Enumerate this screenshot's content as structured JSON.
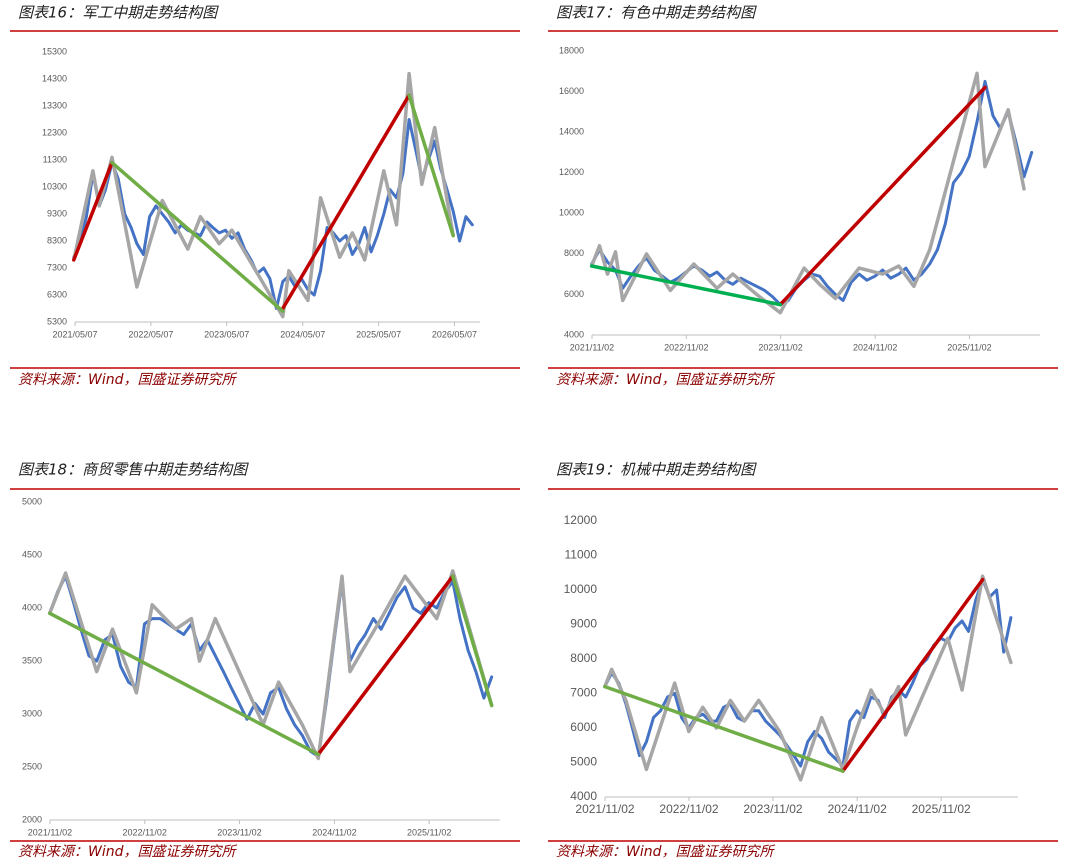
{
  "chart_data": [
    {
      "type": "line",
      "title": "图表16：军工中期走势结构图",
      "source": "资料来源：Wind，国盛证券研究所",
      "xlim": [
        "2021/05/07",
        "2026/09/07"
      ],
      "xticks": [
        "2021/05/07",
        "2022/05/07",
        "2023/05/07",
        "2024/05/07",
        "2025/05/07",
        "2026/05/07"
      ],
      "ylim": [
        5300,
        15300
      ],
      "yticks": [
        5300,
        6300,
        7300,
        8300,
        9300,
        10300,
        11300,
        12300,
        13300,
        14300,
        15300
      ],
      "series": [
        {
          "color": "#4472c4",
          "x": [
            "2021/05",
            "2021/06",
            "2021/07",
            "2021/08",
            "2021/09",
            "2021/10",
            "2021/11",
            "2021/12",
            "2022/01",
            "2022/02",
            "2022/03",
            "2022/04",
            "2022/05",
            "2022/06",
            "2022/07",
            "2022/08",
            "2022/09",
            "2022/10",
            "2022/11",
            "2022/12",
            "2023/01",
            "2023/02",
            "2023/03",
            "2023/04",
            "2023/05",
            "2023/06",
            "2023/07",
            "2023/08",
            "2023/09",
            "2023/10",
            "2023/11",
            "2023/12",
            "2024/01",
            "2024/02",
            "2024/03",
            "2024/04",
            "2024/05",
            "2024/06",
            "2024/07",
            "2024/08",
            "2024/09",
            "2024/10",
            "2024/11",
            "2024/12",
            "2025/01",
            "2025/02",
            "2025/03",
            "2025/04",
            "2025/05",
            "2025/06",
            "2025/07",
            "2025/08",
            "2025/09",
            "2025/10",
            "2025/11",
            "2025/12",
            "2026/01",
            "2026/02",
            "2026/03",
            "2026/04",
            "2026/05",
            "2026/06",
            "2026/07",
            "2026/08"
          ],
          "values": [
            7700,
            8300,
            9200,
            10800,
            9600,
            10200,
            11200,
            10600,
            9300,
            8800,
            8200,
            7800,
            9200,
            9600,
            9300,
            9000,
            8600,
            8900,
            8700,
            8600,
            8500,
            9000,
            8800,
            8600,
            8700,
            8400,
            8600,
            8000,
            7600,
            7100,
            7300,
            6900,
            5800,
            6800,
            7000,
            6600,
            6900,
            6500,
            6300,
            7200,
            8800,
            8600,
            8300,
            8500,
            7800,
            8200,
            8800,
            7900,
            8500,
            9300,
            10200,
            9900,
            10800,
            12800,
            11700,
            10600,
            11300,
            12000,
            11000,
            10200,
            9400,
            8300,
            9200,
            8900
          ]
        },
        {
          "color": "#a6a6a6",
          "x": [
            "2021/05",
            "2021/08",
            "2021/09",
            "2021/11",
            "2022/03",
            "2022/07",
            "2022/11",
            "2023/01",
            "2023/04",
            "2023/06",
            "2024/02",
            "2024/03",
            "2024/06",
            "2024/08",
            "2024/11",
            "2025/01",
            "2025/03",
            "2025/06",
            "2025/08",
            "2025/10",
            "2025/12",
            "2026/02",
            "2026/05"
          ],
          "values": [
            7600,
            10900,
            9600,
            11400,
            6600,
            9800,
            8000,
            9200,
            8200,
            8700,
            5500,
            7200,
            6100,
            9900,
            7700,
            8600,
            7600,
            10900,
            8900,
            14500,
            10400,
            12500,
            8500
          ]
        },
        {
          "color": "#c00000",
          "x": [
            "2021/05",
            "2021/11",
            "2021/11",
            "2024/02",
            "2025/10"
          ],
          "values": [
            7600,
            11200,
            null,
            5800,
            13700
          ]
        },
        {
          "color": "#70ad47",
          "x": [
            "2021/11",
            "2024/02",
            "2024/02",
            "2025/10",
            "2026/05"
          ],
          "values": [
            11200,
            5700,
            null,
            13700,
            8500
          ]
        }
      ]
    },
    {
      "type": "line",
      "title": "图表17：有色中期走势结构图",
      "source": "资料来源：Wind，国盛证券研究所",
      "xlim": [
        "2021/11/02",
        "2026/08/02"
      ],
      "xticks": [
        "2021/11/02",
        "2022/11/02",
        "2023/11/02",
        "2024/11/02",
        "2025/11/02"
      ],
      "ylim": [
        4000,
        18000
      ],
      "yticks": [
        4000,
        6000,
        8000,
        10000,
        12000,
        14000,
        16000,
        18000
      ],
      "series": [
        {
          "color": "#4472c4",
          "x": [
            "2021/11",
            "2021/12",
            "2022/01",
            "2022/02",
            "2022/03",
            "2022/04",
            "2022/05",
            "2022/06",
            "2022/07",
            "2022/08",
            "2022/09",
            "2022/10",
            "2022/11",
            "2022/12",
            "2023/01",
            "2023/02",
            "2023/03",
            "2023/04",
            "2023/05",
            "2023/06",
            "2023/07",
            "2023/08",
            "2023/09",
            "2023/10",
            "2023/11",
            "2023/12",
            "2024/01",
            "2024/02",
            "2024/03",
            "2024/04",
            "2024/05",
            "2024/06",
            "2024/07",
            "2024/08",
            "2024/09",
            "2024/10",
            "2024/11",
            "2024/12",
            "2025/01",
            "2025/02",
            "2025/03",
            "2025/04",
            "2025/05",
            "2025/06",
            "2025/07",
            "2025/08",
            "2025/09",
            "2025/10",
            "2025/11",
            "2025/12",
            "2026/01",
            "2026/02",
            "2026/03",
            "2026/04",
            "2026/05",
            "2026/06",
            "2026/07"
          ],
          "values": [
            7500,
            8200,
            7600,
            7200,
            6300,
            6900,
            7400,
            7800,
            7200,
            6900,
            6600,
            6800,
            7100,
            7400,
            7200,
            6900,
            7100,
            6700,
            6500,
            6800,
            6600,
            6400,
            6200,
            5900,
            5500,
            5700,
            6300,
            6700,
            7000,
            6900,
            6400,
            6000,
            5700,
            6600,
            7000,
            6700,
            6900,
            7200,
            6800,
            7000,
            7300,
            6700,
            7000,
            7500,
            8200,
            9500,
            11500,
            12000,
            12800,
            14500,
            16500,
            14800,
            14200,
            15000,
            13500,
            11800,
            13000
          ]
        },
        {
          "color": "#a6a6a6",
          "x": [
            "2021/11",
            "2021/12",
            "2022/01",
            "2022/02",
            "2022/03",
            "2022/06",
            "2022/09",
            "2022/12",
            "2023/03",
            "2023/05",
            "2023/08",
            "2023/11",
            "2024/02",
            "2024/04",
            "2024/06",
            "2024/09",
            "2024/12",
            "2025/02",
            "2025/04",
            "2025/06",
            "2025/12",
            "2026/01",
            "2026/04",
            "2026/06"
          ],
          "values": [
            7400,
            8400,
            7000,
            8100,
            5700,
            8000,
            6200,
            7500,
            6300,
            7000,
            6000,
            5100,
            7300,
            6500,
            5800,
            7300,
            7000,
            7400,
            6400,
            8200,
            16900,
            12300,
            15100,
            11200
          ]
        },
        {
          "color": "#c00000",
          "x": [
            "2023/11",
            "2026/01"
          ],
          "values": [
            5500,
            16200
          ]
        },
        {
          "color": "#00b050",
          "x": [
            "2021/11",
            "2023/11"
          ],
          "values": [
            7400,
            5500
          ]
        }
      ]
    },
    {
      "type": "line",
      "title": "图表18：商贸零售中期走势结构图",
      "source": "资料来源：Wind，国盛证券研究所",
      "xlim": [
        "2021/11/02",
        "2026/08/02"
      ],
      "xticks": [
        "2021/11/02",
        "2022/11/02",
        "2023/11/02",
        "2024/11/02",
        "2025/11/02"
      ],
      "ylim": [
        2000,
        5000
      ],
      "yticks": [
        2000,
        2500,
        3000,
        3500,
        4000,
        4500,
        5000
      ],
      "series": [
        {
          "color": "#4472c4",
          "x": [
            "2021/11",
            "2021/12",
            "2022/01",
            "2022/02",
            "2022/03",
            "2022/04",
            "2022/05",
            "2022/06",
            "2022/07",
            "2022/08",
            "2022/09",
            "2022/10",
            "2022/11",
            "2022/12",
            "2023/01",
            "2023/02",
            "2023/03",
            "2023/04",
            "2023/05",
            "2023/06",
            "2023/07",
            "2023/08",
            "2023/09",
            "2023/10",
            "2023/11",
            "2023/12",
            "2024/01",
            "2024/02",
            "2024/03",
            "2024/04",
            "2024/05",
            "2024/06",
            "2024/07",
            "2024/08",
            "2024/09",
            "2024/10",
            "2024/11",
            "2024/12",
            "2025/01",
            "2025/02",
            "2025/03",
            "2025/04",
            "2025/05",
            "2025/06",
            "2025/07",
            "2025/08",
            "2025/09",
            "2025/10",
            "2025/11",
            "2025/12",
            "2026/01",
            "2026/02",
            "2026/03",
            "2026/04",
            "2026/05",
            "2026/06",
            "2026/07"
          ],
          "values": [
            3950,
            4150,
            4300,
            4050,
            3800,
            3550,
            3500,
            3700,
            3750,
            3450,
            3300,
            3250,
            3850,
            3900,
            3900,
            3850,
            3800,
            3750,
            3850,
            3600,
            3700,
            3550,
            3400,
            3250,
            3100,
            2950,
            3100,
            3000,
            3200,
            3250,
            3050,
            2900,
            2800,
            2650,
            2600,
            3100,
            3700,
            4250,
            3500,
            3650,
            3750,
            3900,
            3800,
            3950,
            4100,
            4200,
            4000,
            3950,
            4050,
            4000,
            4150,
            4250,
            3900,
            3600,
            3400,
            3150,
            3350
          ]
        },
        {
          "color": "#a6a6a6",
          "x": [
            "2021/11",
            "2022/01",
            "2022/05",
            "2022/07",
            "2022/10",
            "2022/12",
            "2023/03",
            "2023/05",
            "2023/06",
            "2023/08",
            "2024/02",
            "2024/04",
            "2024/07",
            "2024/09",
            "2024/12",
            "2025/01",
            "2025/05",
            "2025/08",
            "2025/12",
            "2026/02",
            "2026/07"
          ],
          "values": [
            3950,
            4330,
            3400,
            3800,
            3200,
            4030,
            3800,
            3900,
            3500,
            3900,
            2900,
            3300,
            2900,
            2580,
            4300,
            3400,
            3900,
            4300,
            3900,
            4350,
            3080
          ]
        },
        {
          "color": "#c00000",
          "x": [
            "2024/09",
            "2026/02"
          ],
          "values": [
            2620,
            4300
          ]
        },
        {
          "color": "#70ad47",
          "x": [
            "2021/11",
            "2024/09",
            "2024/09",
            "2026/02",
            "2026/07"
          ],
          "values": [
            3950,
            2620,
            null,
            4300,
            3080
          ]
        }
      ]
    },
    {
      "type": "line",
      "title": "图表19：机械中期走势结构图",
      "source": "资料来源：Wind，国盛证券研究所",
      "xlim": [
        "2021/11/02",
        "2026/10/02"
      ],
      "xticks": [
        "2021/11/02",
        "2022/11/02",
        "2023/11/02",
        "2024/11/02",
        "2025/11/02"
      ],
      "ylim": [
        4000,
        12000
      ],
      "yticks": [
        4000,
        5000,
        6000,
        7000,
        8000,
        9000,
        10000,
        11000,
        12000
      ],
      "series": [
        {
          "color": "#4472c4",
          "x": [
            "2021/11",
            "2021/12",
            "2022/01",
            "2022/02",
            "2022/03",
            "2022/04",
            "2022/05",
            "2022/06",
            "2022/07",
            "2022/08",
            "2022/09",
            "2022/10",
            "2022/11",
            "2022/12",
            "2023/01",
            "2023/02",
            "2023/03",
            "2023/04",
            "2023/05",
            "2023/06",
            "2023/07",
            "2023/08",
            "2023/09",
            "2023/10",
            "2023/11",
            "2023/12",
            "2024/01",
            "2024/02",
            "2024/03",
            "2024/04",
            "2024/05",
            "2024/06",
            "2024/07",
            "2024/08",
            "2024/09",
            "2024/10",
            "2024/11",
            "2024/12",
            "2025/01",
            "2025/02",
            "2025/03",
            "2025/04",
            "2025/05",
            "2025/06",
            "2025/07",
            "2025/08",
            "2025/09",
            "2025/10",
            "2025/11",
            "2025/12",
            "2026/01",
            "2026/02",
            "2026/03",
            "2026/04",
            "2026/05",
            "2026/06",
            "2026/07",
            "2026/08",
            "2026/09"
          ],
          "values": [
            7200,
            7600,
            7300,
            6700,
            6000,
            5200,
            5600,
            6300,
            6500,
            6900,
            7000,
            6300,
            6000,
            6300,
            6400,
            6200,
            6200,
            6600,
            6700,
            6300,
            6200,
            6500,
            6500,
            6200,
            6000,
            5800,
            5500,
            5200,
            4900,
            5600,
            5900,
            5700,
            5300,
            5100,
            4900,
            6200,
            6500,
            6300,
            6900,
            6800,
            6300,
            6900,
            7100,
            6900,
            7300,
            7800,
            8000,
            8400,
            8600,
            8500,
            8900,
            9100,
            8800,
            9700,
            10300,
            9800,
            10000,
            8200,
            9200
          ]
        },
        {
          "color": "#a6a6a6",
          "x": [
            "2021/11",
            "2021/12",
            "2022/02",
            "2022/05",
            "2022/09",
            "2022/11",
            "2023/01",
            "2023/03",
            "2023/05",
            "2023/07",
            "2023/09",
            "2023/12",
            "2024/03",
            "2024/06",
            "2024/09",
            "2024/11",
            "2025/01",
            "2025/03",
            "2025/05",
            "2025/06",
            "2025/12",
            "2026/02",
            "2026/05",
            "2026/09"
          ],
          "values": [
            7200,
            7700,
            6800,
            4800,
            7300,
            5900,
            6600,
            6000,
            6800,
            6200,
            6800,
            5900,
            4500,
            6300,
            4800,
            6000,
            7100,
            6400,
            7200,
            5800,
            8600,
            7100,
            10400,
            7900
          ]
        },
        {
          "color": "#c00000",
          "x": [
            "2024/09",
            "2026/05"
          ],
          "values": [
            4750,
            10300
          ]
        },
        {
          "color": "#70ad47",
          "x": [
            "2021/11",
            "2024/09"
          ],
          "values": [
            7200,
            4750
          ]
        }
      ]
    }
  ]
}
